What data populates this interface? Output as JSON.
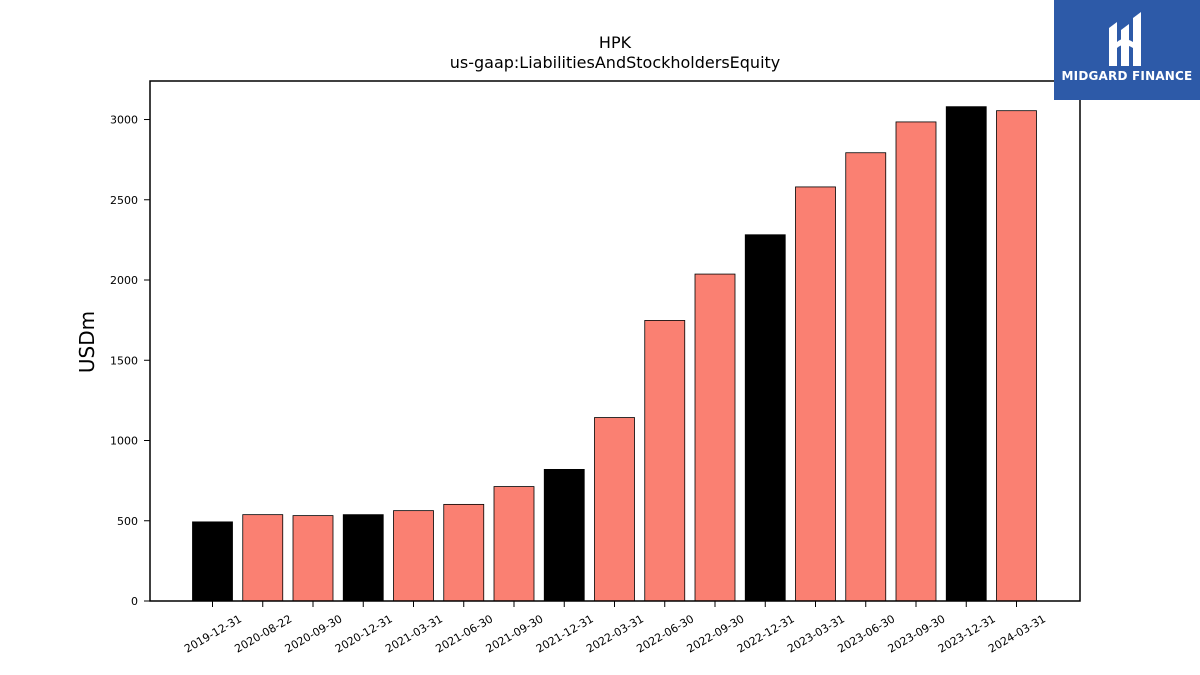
{
  "chart_data": {
    "type": "bar",
    "title": "HPK",
    "subtitle": "us-gaap:LiabilitiesAndStockholdersEquity",
    "ylabel": "USDm",
    "ylim": [
      0,
      3240
    ],
    "yticks": [
      0,
      500,
      1000,
      1500,
      2000,
      2500,
      3000
    ],
    "categories": [
      "2019-12-31",
      "2020-08-22",
      "2020-09-30",
      "2020-12-31",
      "2021-03-31",
      "2021-06-30",
      "2021-09-30",
      "2021-12-31",
      "2022-03-31",
      "2022-06-30",
      "2022-09-30",
      "2022-12-31",
      "2023-03-31",
      "2023-06-30",
      "2023-09-30",
      "2023-12-31",
      "2024-03-31"
    ],
    "values": [
      493,
      538,
      532,
      538,
      563,
      602,
      713,
      820,
      1143,
      1748,
      2037,
      2282,
      2580,
      2793,
      2985,
      3080,
      3055
    ],
    "bar_colors": [
      "#000000",
      "#fa8072",
      "#fa8072",
      "#000000",
      "#fa8072",
      "#fa8072",
      "#fa8072",
      "#000000",
      "#fa8072",
      "#fa8072",
      "#fa8072",
      "#000000",
      "#fa8072",
      "#fa8072",
      "#fa8072",
      "#000000",
      "#fa8072"
    ],
    "grid": false
  },
  "logo": {
    "text": "MIDGARD FINANCE",
    "bg": "#2d5aa8"
  }
}
